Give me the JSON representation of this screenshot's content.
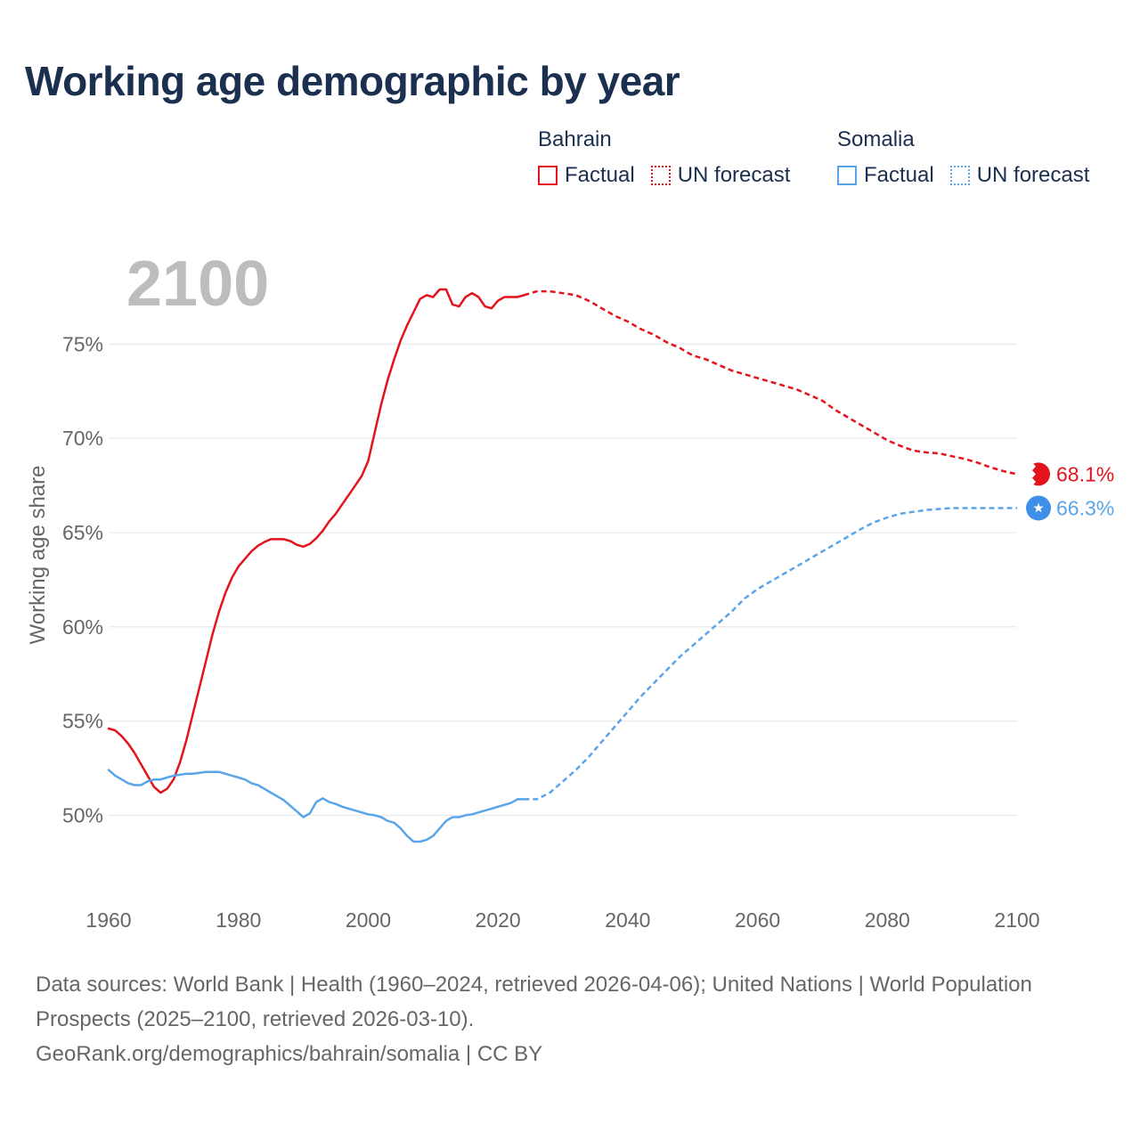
{
  "title": "Working age demographic by year",
  "legend": {
    "groups": [
      {
        "name": "Bahrain",
        "color": "#e3141c",
        "factual_label": "Factual",
        "forecast_label": "UN forecast"
      },
      {
        "name": "Somalia",
        "color": "#5aa5e8",
        "factual_label": "Factual",
        "forecast_label": "UN forecast"
      }
    ]
  },
  "footer": {
    "sources": "Data sources: World Bank | Health (1960–2024, retrieved 2026-04-06); United Nations | World Population Prospects (2025–2100, retrieved 2026-03-10).",
    "credit": "GeoRank.org/demographics/bahrain/somalia | CC BY"
  },
  "chart_data": {
    "type": "line",
    "title": "Working age demographic by year",
    "year_label": "2100",
    "xlabel": "",
    "ylabel": "Working age share",
    "xlim": [
      1960,
      2100
    ],
    "ylim": [
      46.0,
      80.5
    ],
    "x_ticks": [
      "1960",
      "1980",
      "2000",
      "2020",
      "2040",
      "2060",
      "2080",
      "2100"
    ],
    "y_ticks": [
      {
        "value": 50,
        "label": "50%"
      },
      {
        "value": 55,
        "label": "55%"
      },
      {
        "value": 60,
        "label": "60%"
      },
      {
        "value": 65,
        "label": "65%"
      },
      {
        "value": 70,
        "label": "70%"
      },
      {
        "value": 75,
        "label": "75%"
      }
    ],
    "grid": true,
    "series": [
      {
        "name": "Bahrain",
        "color": "#e3141c",
        "end_label": "68.1%",
        "factual": [
          [
            1960,
            54.6
          ],
          [
            1961,
            54.5
          ],
          [
            1962,
            54.2
          ],
          [
            1963,
            53.8
          ],
          [
            1964,
            53.3
          ],
          [
            1965,
            52.7
          ],
          [
            1966,
            52.1
          ],
          [
            1967,
            51.5
          ],
          [
            1968,
            51.2
          ],
          [
            1969,
            51.4
          ],
          [
            1970,
            51.9
          ],
          [
            1971,
            52.8
          ],
          [
            1972,
            54.0
          ],
          [
            1973,
            55.4
          ],
          [
            1974,
            56.8
          ],
          [
            1975,
            58.2
          ],
          [
            1976,
            59.6
          ],
          [
            1977,
            60.8
          ],
          [
            1978,
            61.8
          ],
          [
            1979,
            62.6
          ],
          [
            1980,
            63.2
          ],
          [
            1981,
            63.6
          ],
          [
            1982,
            64.0
          ],
          [
            1983,
            64.3
          ],
          [
            1984,
            64.5
          ],
          [
            1985,
            64.65
          ],
          [
            1986,
            64.65
          ],
          [
            1987,
            64.65
          ],
          [
            1988,
            64.55
          ],
          [
            1989,
            64.35
          ],
          [
            1990,
            64.25
          ],
          [
            1991,
            64.4
          ],
          [
            1992,
            64.7
          ],
          [
            1993,
            65.1
          ],
          [
            1994,
            65.6
          ],
          [
            1995,
            66.0
          ],
          [
            1996,
            66.5
          ],
          [
            1997,
            67.0
          ],
          [
            1998,
            67.5
          ],
          [
            1999,
            68.0
          ],
          [
            2000,
            68.8
          ],
          [
            2001,
            70.3
          ],
          [
            2002,
            71.8
          ],
          [
            2003,
            73.1
          ],
          [
            2004,
            74.2
          ],
          [
            2005,
            75.2
          ],
          [
            2006,
            76.0
          ],
          [
            2007,
            76.7
          ],
          [
            2008,
            77.4
          ],
          [
            2009,
            77.6
          ],
          [
            2010,
            77.5
          ],
          [
            2011,
            77.9
          ],
          [
            2012,
            77.9
          ],
          [
            2013,
            77.1
          ],
          [
            2014,
            77.0
          ],
          [
            2015,
            77.5
          ],
          [
            2016,
            77.7
          ],
          [
            2017,
            77.5
          ],
          [
            2018,
            77.0
          ],
          [
            2019,
            76.9
          ],
          [
            2020,
            77.3
          ],
          [
            2021,
            77.5
          ],
          [
            2022,
            77.5
          ],
          [
            2023,
            77.5
          ],
          [
            2024,
            77.6
          ]
        ],
        "forecast": [
          [
            2024,
            77.6
          ],
          [
            2026,
            77.8
          ],
          [
            2028,
            77.8
          ],
          [
            2030,
            77.7
          ],
          [
            2032,
            77.6
          ],
          [
            2034,
            77.3
          ],
          [
            2036,
            76.9
          ],
          [
            2038,
            76.5
          ],
          [
            2040,
            76.2
          ],
          [
            2042,
            75.8
          ],
          [
            2044,
            75.5
          ],
          [
            2046,
            75.1
          ],
          [
            2048,
            74.8
          ],
          [
            2050,
            74.4
          ],
          [
            2052,
            74.2
          ],
          [
            2054,
            73.9
          ],
          [
            2056,
            73.6
          ],
          [
            2058,
            73.4
          ],
          [
            2060,
            73.2
          ],
          [
            2062,
            73.0
          ],
          [
            2064,
            72.8
          ],
          [
            2066,
            72.6
          ],
          [
            2068,
            72.3
          ],
          [
            2070,
            72.0
          ],
          [
            2072,
            71.5
          ],
          [
            2074,
            71.1
          ],
          [
            2076,
            70.7
          ],
          [
            2078,
            70.3
          ],
          [
            2080,
            69.9
          ],
          [
            2082,
            69.6
          ],
          [
            2084,
            69.35
          ],
          [
            2086,
            69.25
          ],
          [
            2088,
            69.2
          ],
          [
            2090,
            69.05
          ],
          [
            2092,
            68.9
          ],
          [
            2094,
            68.7
          ],
          [
            2096,
            68.45
          ],
          [
            2098,
            68.25
          ],
          [
            2100,
            68.1
          ]
        ]
      },
      {
        "name": "Somalia",
        "color": "#5aa5e8",
        "end_label": "66.3%",
        "factual": [
          [
            1960,
            52.4
          ],
          [
            1961,
            52.1
          ],
          [
            1962,
            51.9
          ],
          [
            1963,
            51.7
          ],
          [
            1964,
            51.6
          ],
          [
            1965,
            51.6
          ],
          [
            1966,
            51.8
          ],
          [
            1967,
            51.9
          ],
          [
            1968,
            51.9
          ],
          [
            1969,
            52.0
          ],
          [
            1970,
            52.1
          ],
          [
            1971,
            52.15
          ],
          [
            1972,
            52.2
          ],
          [
            1973,
            52.2
          ],
          [
            1974,
            52.25
          ],
          [
            1975,
            52.3
          ],
          [
            1976,
            52.3
          ],
          [
            1977,
            52.3
          ],
          [
            1978,
            52.2
          ],
          [
            1979,
            52.1
          ],
          [
            1980,
            52.0
          ],
          [
            1981,
            51.9
          ],
          [
            1982,
            51.7
          ],
          [
            1983,
            51.6
          ],
          [
            1984,
            51.4
          ],
          [
            1985,
            51.2
          ],
          [
            1986,
            51.0
          ],
          [
            1987,
            50.8
          ],
          [
            1988,
            50.5
          ],
          [
            1989,
            50.2
          ],
          [
            1990,
            49.9
          ],
          [
            1991,
            50.1
          ],
          [
            1992,
            50.7
          ],
          [
            1993,
            50.9
          ],
          [
            1994,
            50.7
          ],
          [
            1995,
            50.6
          ],
          [
            1996,
            50.45
          ],
          [
            1997,
            50.35
          ],
          [
            1998,
            50.25
          ],
          [
            1999,
            50.15
          ],
          [
            2000,
            50.05
          ],
          [
            2001,
            50.0
          ],
          [
            2002,
            49.9
          ],
          [
            2003,
            49.7
          ],
          [
            2004,
            49.6
          ],
          [
            2005,
            49.3
          ],
          [
            2006,
            48.9
          ],
          [
            2007,
            48.6
          ],
          [
            2008,
            48.6
          ],
          [
            2009,
            48.7
          ],
          [
            2010,
            48.9
          ],
          [
            2011,
            49.3
          ],
          [
            2012,
            49.7
          ],
          [
            2013,
            49.9
          ],
          [
            2014,
            49.9
          ],
          [
            2015,
            50.0
          ],
          [
            2016,
            50.05
          ],
          [
            2017,
            50.15
          ],
          [
            2018,
            50.25
          ],
          [
            2019,
            50.35
          ],
          [
            2020,
            50.45
          ],
          [
            2021,
            50.55
          ],
          [
            2022,
            50.65
          ],
          [
            2023,
            50.85
          ],
          [
            2024,
            50.85
          ]
        ],
        "forecast": [
          [
            2024,
            50.85
          ],
          [
            2026,
            50.85
          ],
          [
            2028,
            51.2
          ],
          [
            2030,
            51.8
          ],
          [
            2032,
            52.4
          ],
          [
            2034,
            53.1
          ],
          [
            2036,
            53.9
          ],
          [
            2038,
            54.7
          ],
          [
            2040,
            55.5
          ],
          [
            2042,
            56.3
          ],
          [
            2044,
            57.0
          ],
          [
            2046,
            57.7
          ],
          [
            2048,
            58.4
          ],
          [
            2050,
            59.0
          ],
          [
            2052,
            59.6
          ],
          [
            2054,
            60.2
          ],
          [
            2056,
            60.8
          ],
          [
            2058,
            61.5
          ],
          [
            2060,
            62.0
          ],
          [
            2062,
            62.4
          ],
          [
            2064,
            62.8
          ],
          [
            2066,
            63.2
          ],
          [
            2068,
            63.6
          ],
          [
            2070,
            64.0
          ],
          [
            2072,
            64.4
          ],
          [
            2074,
            64.8
          ],
          [
            2076,
            65.2
          ],
          [
            2078,
            65.55
          ],
          [
            2080,
            65.8
          ],
          [
            2082,
            66.0
          ],
          [
            2084,
            66.1
          ],
          [
            2086,
            66.2
          ],
          [
            2088,
            66.25
          ],
          [
            2090,
            66.3
          ],
          [
            2092,
            66.3
          ],
          [
            2094,
            66.3
          ],
          [
            2096,
            66.3
          ],
          [
            2098,
            66.3
          ],
          [
            2100,
            66.3
          ]
        ]
      }
    ]
  }
}
